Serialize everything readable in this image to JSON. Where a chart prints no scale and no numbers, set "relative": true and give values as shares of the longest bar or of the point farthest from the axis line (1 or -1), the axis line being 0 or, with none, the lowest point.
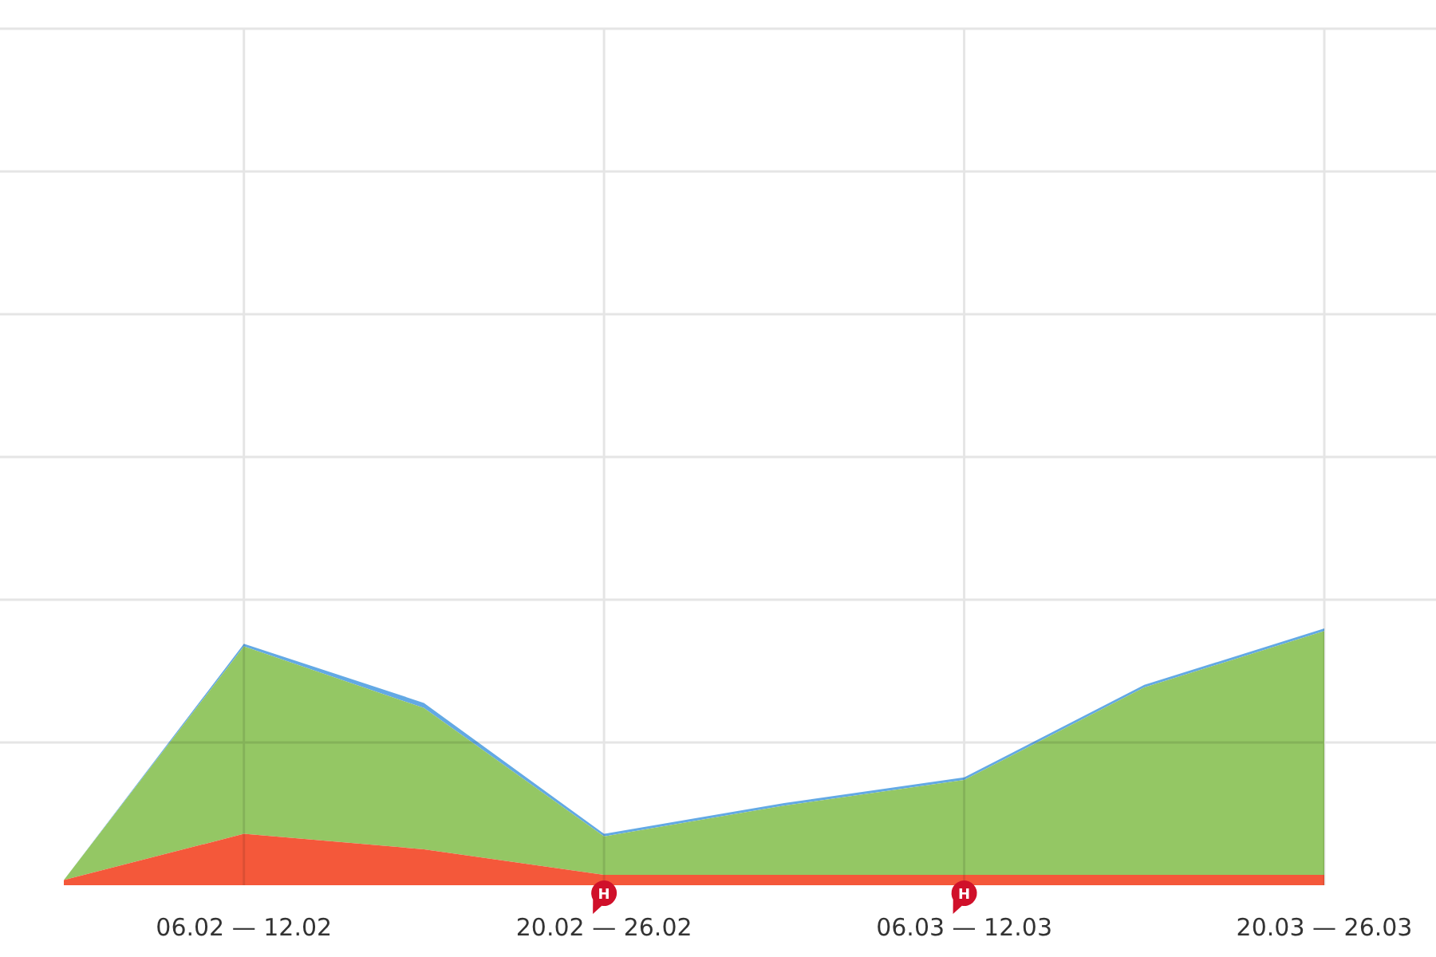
{
  "chart_data": {
    "type": "area",
    "stacked": true,
    "relative": true,
    "grid": true,
    "categories": [
      null,
      "06.02 — 12.02",
      null,
      "20.02 — 26.02",
      null,
      "06.03 — 12.03",
      null,
      "20.03 — 26.03"
    ],
    "series": [
      {
        "color": "#f4583a",
        "values": [
          0.02,
          0.2,
          0.14,
          0.04,
          0.04,
          0.04,
          0.04,
          0.04
        ]
      },
      {
        "color": "#94c764",
        "values": [
          0,
          0.73,
          0.55,
          0.15,
          0.27,
          0.37,
          0.73,
          0.95
        ]
      },
      {
        "color": "#63a9e4",
        "values": [
          0,
          0.01,
          0.02,
          0.01,
          0.01,
          0.01,
          0.01,
          0.01
        ]
      }
    ],
    "annotations": [
      {
        "text": "H",
        "x": "20.02 — 26.02"
      },
      {
        "text": "H",
        "x": "06.03 — 12.03"
      }
    ]
  }
}
